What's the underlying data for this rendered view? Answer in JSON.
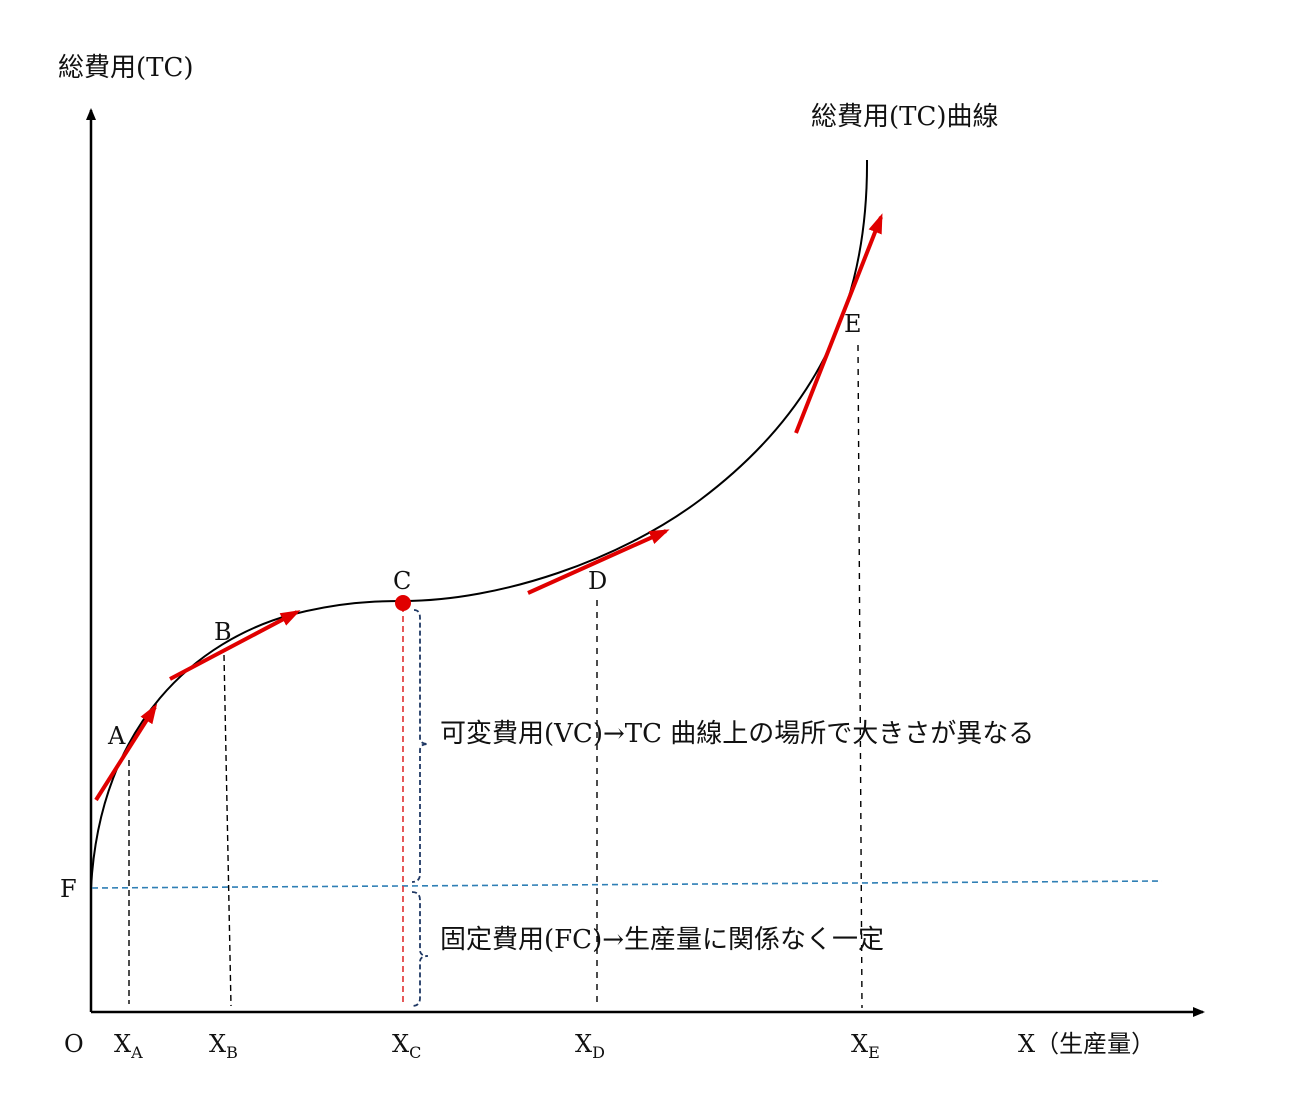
{
  "axes": {
    "y_label": "総費用(TC)",
    "x_label": "X（生産量）",
    "origin": "O",
    "fixed_cost_level": "F"
  },
  "curve": {
    "label": "総費用(TC)曲線"
  },
  "points": [
    {
      "name": "A",
      "tick_base": "X",
      "tick_sub": "A"
    },
    {
      "name": "B",
      "tick_base": "X",
      "tick_sub": "B"
    },
    {
      "name": "C",
      "tick_base": "X",
      "tick_sub": "C"
    },
    {
      "name": "D",
      "tick_base": "X",
      "tick_sub": "D"
    },
    {
      "name": "E",
      "tick_base": "X",
      "tick_sub": "E"
    }
  ],
  "annotations": {
    "variable_cost": "可変費用(VC)→TC 曲線上の場所で大きさが異なる",
    "fixed_cost": "固定費用(FC)→生産量に関係なく一定"
  },
  "colors": {
    "axis": "#000000",
    "curve": "#000000",
    "tangent": "#e00000",
    "fc_line": "#2f7fb5",
    "vc_line": "#e03030",
    "brace": "#1f3864"
  }
}
